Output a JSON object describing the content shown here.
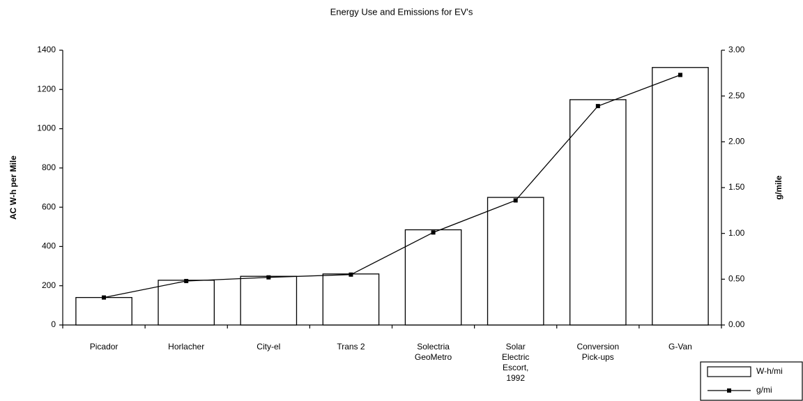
{
  "chart_data": {
    "type": "bar_line",
    "title": "Energy Use and Emissions for EV's",
    "y_label": "AC W-h per Mile",
    "y2_label": "g/mile",
    "categories": [
      "Picador",
      "Horlacher",
      "City-el",
      "Trans 2",
      "Solectria GeoMetro",
      "Solar Electric Escort, 1992",
      "Conversion Pick-ups",
      "G-Van"
    ],
    "series": [
      {
        "name": "W-h/mi",
        "type": "bar",
        "color": "#ffffff",
        "values": [
          140,
          228,
          248,
          260,
          485,
          650,
          1148,
          1312
        ]
      },
      {
        "name": "g/mi",
        "type": "line",
        "color": "#000000",
        "axis": "y2",
        "values": [
          0.3,
          0.48,
          0.52,
          0.55,
          1.01,
          1.36,
          2.39,
          2.73
        ]
      }
    ],
    "ylim": [
      0,
      1400
    ],
    "yticks": [
      0,
      200,
      400,
      600,
      800,
      1000,
      1200,
      1400
    ],
    "y2lim": [
      0,
      3
    ],
    "y2ticks": [
      {
        "value": 0,
        "label": "0.00"
      },
      {
        "value": 0.5,
        "label": "0.50"
      },
      {
        "value": 1,
        "label": "1.00"
      },
      {
        "value": 1.5,
        "label": "1.50"
      },
      {
        "value": 2,
        "label": "2.00"
      },
      {
        "value": 2.5,
        "label": "2.50"
      },
      {
        "value": 3,
        "label": "3.00"
      }
    ],
    "grid": false,
    "legend": "lower right"
  }
}
